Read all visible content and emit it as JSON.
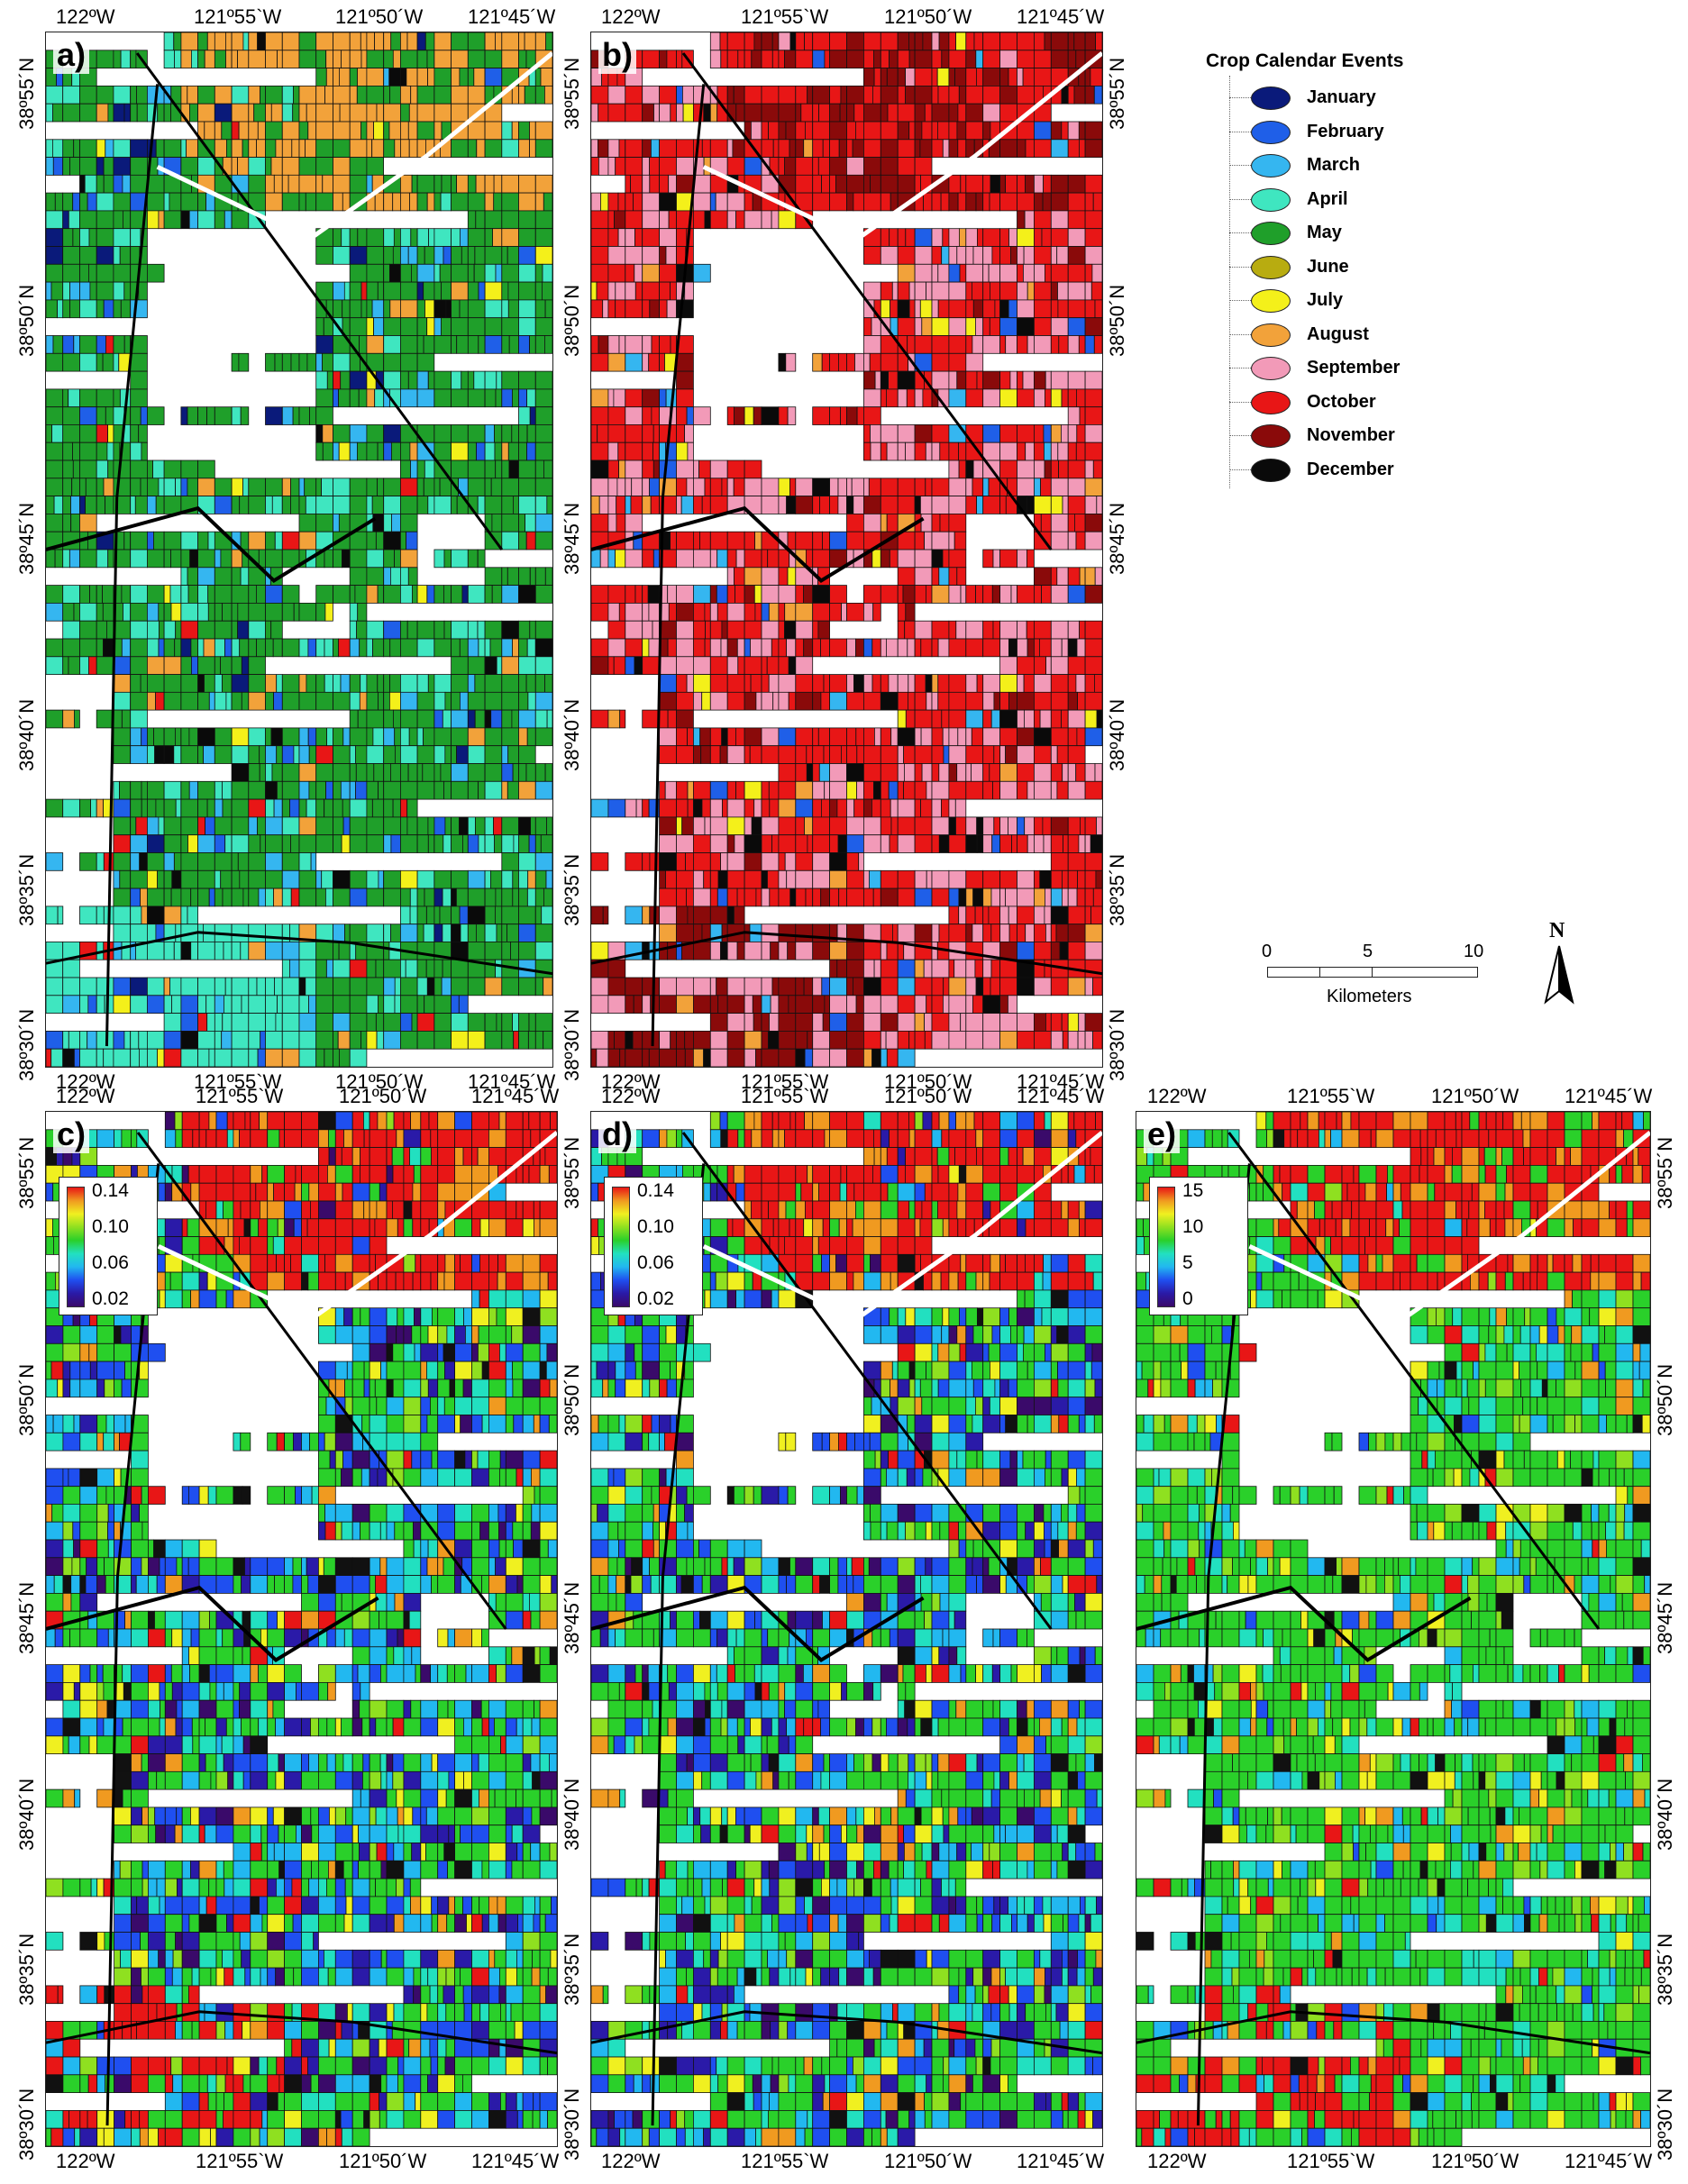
{
  "panels": [
    {
      "id": "a",
      "label": "a)",
      "scheme": "calendar_a",
      "colorbar": null
    },
    {
      "id": "b",
      "label": "b)",
      "scheme": "calendar_b",
      "colorbar": null
    },
    {
      "id": "c",
      "label": "c)",
      "scheme": "rainbow_c",
      "colorbar": {
        "labels": [
          "0.14",
          "0.10",
          "0.06",
          "0.02"
        ]
      }
    },
    {
      "id": "d",
      "label": "d)",
      "scheme": "rainbow_d",
      "colorbar": {
        "labels": [
          "0.14",
          "0.10",
          "0.06",
          "0.02"
        ]
      }
    },
    {
      "id": "e",
      "label": "e)",
      "scheme": "rainbow_e",
      "colorbar": {
        "labels": [
          "15",
          "10",
          "5",
          "0"
        ]
      }
    }
  ],
  "axes": {
    "longitudes": [
      "122ºW",
      "121º55`W",
      "121º50´W",
      "121º45´W"
    ],
    "latitudes": [
      "38º55´N",
      "38º50´N",
      "38º45´N",
      "38º40´N",
      "38º35´N",
      "38º30´N"
    ]
  },
  "legend": {
    "title": "Crop Calendar Events",
    "items": [
      {
        "label": "January",
        "color": "#0a1a7a"
      },
      {
        "label": "February",
        "color": "#1f5fe8"
      },
      {
        "label": "March",
        "color": "#35b6f0"
      },
      {
        "label": "April",
        "color": "#3fe6c0"
      },
      {
        "label": "May",
        "color": "#1f9f2a"
      },
      {
        "label": "June",
        "color": "#b8ac10"
      },
      {
        "label": "July",
        "color": "#f4f01a"
      },
      {
        "label": "August",
        "color": "#f2a23a"
      },
      {
        "label": "September",
        "color": "#f29ab8"
      },
      {
        "label": "October",
        "color": "#e81616"
      },
      {
        "label": "November",
        "color": "#8a0a0a"
      },
      {
        "label": "December",
        "color": "#0a0a0a"
      }
    ]
  },
  "scalebar": {
    "ticks": [
      "0",
      "5",
      "10"
    ],
    "unit": "Kilometers"
  },
  "north_arrow": {
    "label": "N"
  },
  "colors": {
    "rainbow": [
      "#3a0a6a",
      "#2a1aa8",
      "#1f4ff0",
      "#22b8f0",
      "#22e0c0",
      "#2ad02a",
      "#8fe020",
      "#f0f020",
      "#f09a20",
      "#e81616"
    ]
  }
}
